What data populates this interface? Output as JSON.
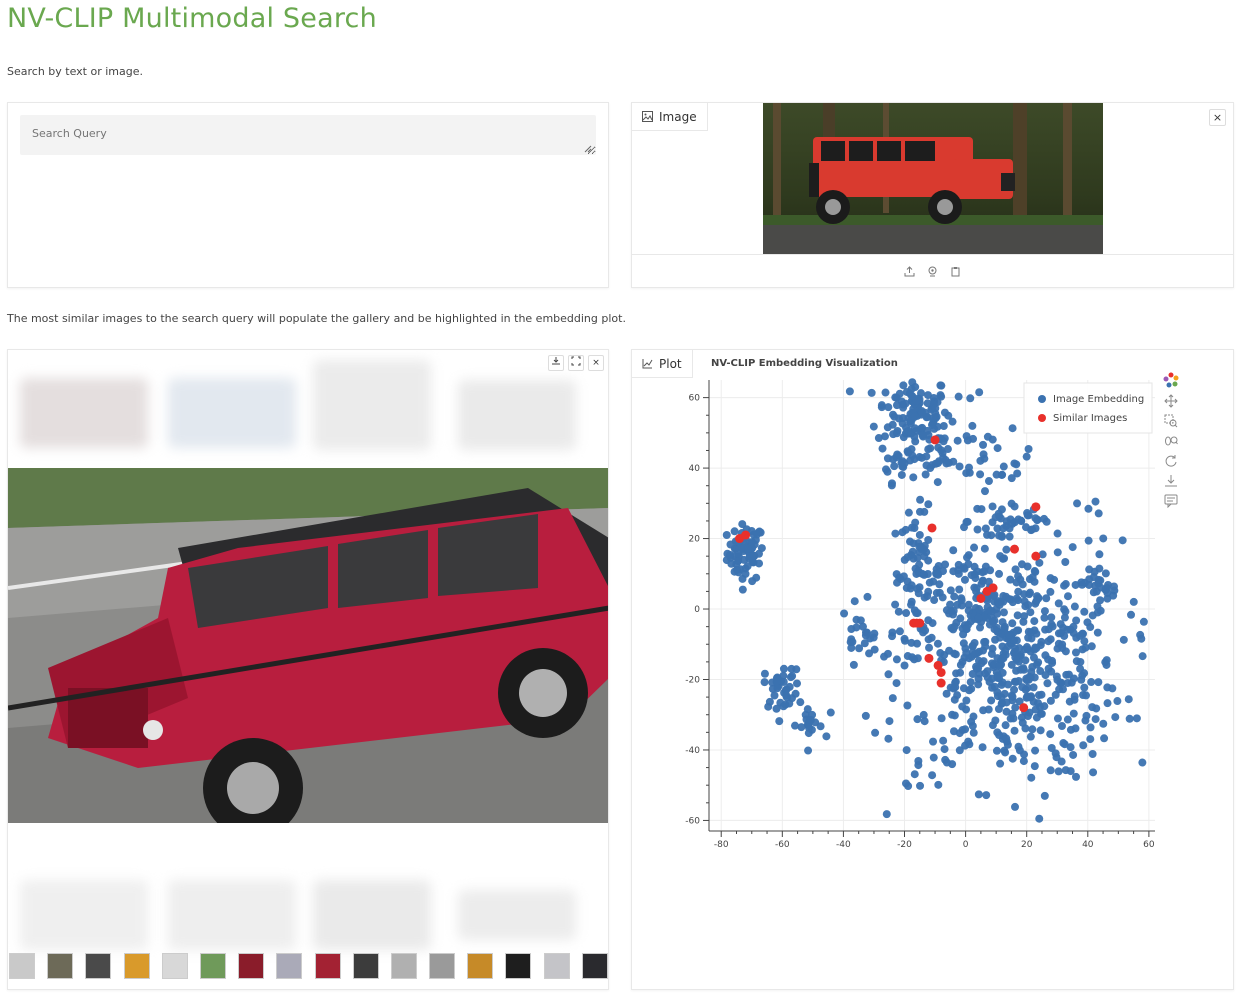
{
  "page": {
    "title": "NV-CLIP Multimodal Search",
    "subtitle": "Search by text or image.",
    "description": "The most similar images to the search query will populate the gallery and be highlighted in the embedding plot."
  },
  "search": {
    "placeholder": "Search Query",
    "value": ""
  },
  "image_input": {
    "label": "Image",
    "label_icon": "image-icon",
    "close": "×",
    "toolbar_icons": [
      "upload-icon",
      "webcam-icon",
      "clipboard-icon"
    ]
  },
  "gallery": {
    "controls": [
      "download-icon",
      "fullscreen-icon",
      "close-icon"
    ],
    "close": "×",
    "thumbnail_count": 16
  },
  "plot": {
    "label": "Plot",
    "label_icon": "chart-icon",
    "tools": [
      "bokeh-logo-icon",
      "pan-icon",
      "box-zoom-icon",
      "wheel-zoom-icon",
      "reset-icon",
      "save-icon",
      "hover-icon"
    ]
  },
  "chart_data": {
    "type": "scatter",
    "title": "NV-CLIP Embedding Visualization",
    "xlabel": "",
    "ylabel": "",
    "xlim": [
      -84,
      62
    ],
    "ylim": [
      -63,
      65
    ],
    "xticks": [
      -80,
      -60,
      -40,
      -20,
      0,
      20,
      40,
      60
    ],
    "yticks": [
      60,
      40,
      20,
      0,
      -20,
      -40,
      -60
    ],
    "grid": true,
    "legend": "top-right",
    "series": [
      {
        "name": "Image Embedding",
        "color": "#3b72b0",
        "clusters": [
          {
            "cx": -72,
            "cy": 16,
            "sx": 3,
            "sy": 4,
            "n": 70
          },
          {
            "cx": -17,
            "cy": 56,
            "sx": 6,
            "sy": 5,
            "n": 110
          },
          {
            "cx": -20,
            "cy": 42,
            "sx": 4,
            "sy": 3,
            "n": 30
          },
          {
            "cx": -8,
            "cy": 45,
            "sx": 5,
            "sy": 4,
            "n": 30
          },
          {
            "cx": 10,
            "cy": 42,
            "sx": 6,
            "sy": 4,
            "n": 25
          },
          {
            "cx": -16,
            "cy": 10,
            "sx": 4,
            "sy": 9,
            "n": 70
          },
          {
            "cx": 15,
            "cy": 25,
            "sx": 7,
            "sy": 4,
            "n": 40
          },
          {
            "cx": 15,
            "cy": -15,
            "sx": 18,
            "sy": 17,
            "n": 560
          },
          {
            "cx": -60,
            "cy": -22,
            "sx": 3,
            "sy": 3,
            "n": 35
          },
          {
            "cx": -52,
            "cy": -33,
            "sx": 3,
            "sy": 3,
            "n": 20
          },
          {
            "cx": 45,
            "cy": 7,
            "sx": 4,
            "sy": 2,
            "n": 20
          },
          {
            "cx": -35,
            "cy": -8,
            "sx": 3,
            "sy": 3,
            "n": 20
          },
          {
            "cx": 7,
            "cy": 0,
            "sx": 8,
            "sy": 8,
            "n": 60
          },
          {
            "cx": 40,
            "cy": 28,
            "sx": 2,
            "sy": 2,
            "n": 4
          },
          {
            "cx": 2,
            "cy": 62,
            "sx": 2,
            "sy": 1,
            "n": 3
          },
          {
            "cx": -17,
            "cy": -46,
            "sx": 2,
            "sy": 2,
            "n": 4
          }
        ]
      },
      {
        "name": "Similar Images",
        "color": "#e8302b",
        "points": [
          [
            -74,
            20
          ],
          [
            -72,
            21
          ],
          [
            -10,
            48
          ],
          [
            -11,
            23
          ],
          [
            23,
            29
          ],
          [
            16,
            17
          ],
          [
            23,
            15
          ],
          [
            9,
            6
          ],
          [
            7,
            5
          ],
          [
            5,
            3
          ],
          [
            -17,
            -4
          ],
          [
            -16,
            -4
          ],
          [
            -15,
            -4
          ],
          [
            -12,
            -14
          ],
          [
            -9,
            -16
          ],
          [
            -8,
            -18
          ],
          [
            -8,
            -21
          ],
          [
            19,
            -28
          ]
        ]
      }
    ]
  }
}
